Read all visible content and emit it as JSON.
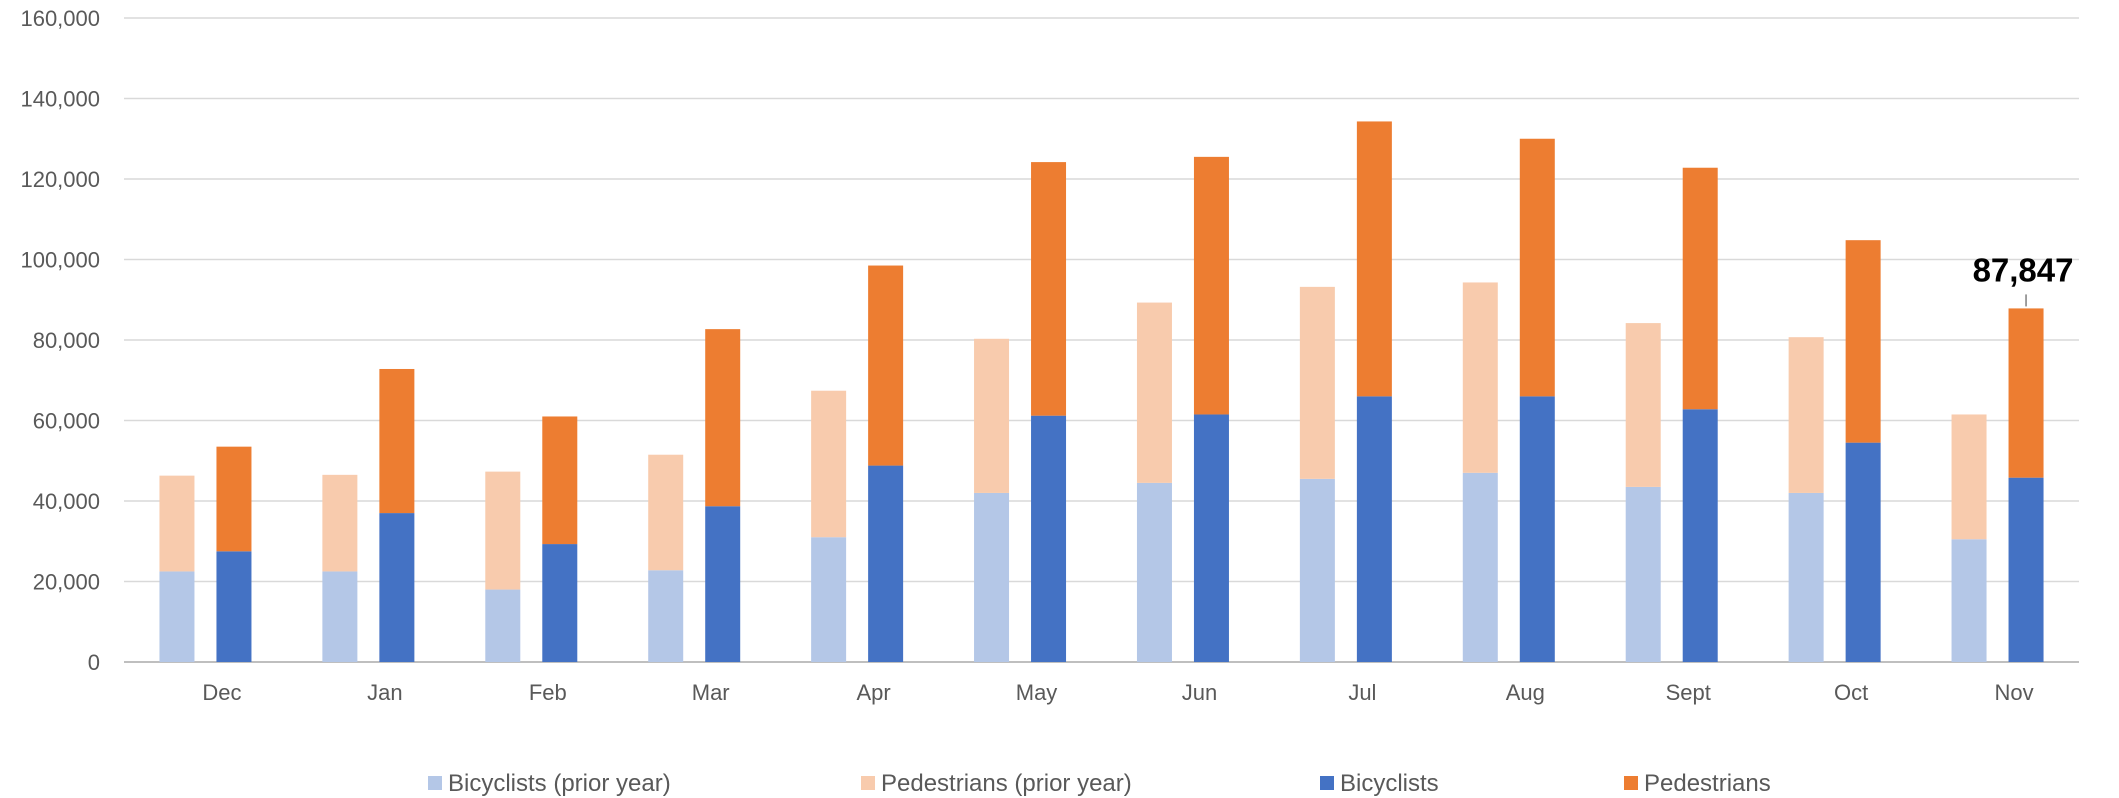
{
  "chart_data": {
    "type": "bar",
    "stacked": true,
    "grouped": true,
    "categories": [
      "Dec",
      "Jan",
      "Feb",
      "Mar",
      "Apr",
      "May",
      "Jun",
      "Jul",
      "Aug",
      "Sept",
      "Oct",
      "Nov"
    ],
    "ylim": [
      0,
      160000
    ],
    "ytick_values": [
      0,
      20000,
      40000,
      60000,
      80000,
      100000,
      120000,
      140000,
      160000
    ],
    "ytick_labels": [
      "0",
      "20,000",
      "40,000",
      "60,000",
      "80,000",
      "100,000",
      "120,000",
      "140,000",
      "160,000"
    ],
    "grid": true,
    "legend_position": "bottom",
    "groups": [
      {
        "stack": "prior",
        "series": [
          {
            "name": "Bicyclists (prior year)",
            "color": "#b4c7e7",
            "values": [
              22500,
              22500,
              18000,
              22800,
              31000,
              42000,
              44500,
              45500,
              47000,
              43500,
              42000,
              30500
            ]
          },
          {
            "name": "Pedestrians (prior year)",
            "color": "#f8cbad",
            "values": [
              23800,
              24000,
              29300,
              28700,
              36400,
              38300,
              44800,
              47700,
              47300,
              40700,
              38700,
              31000
            ]
          }
        ]
      },
      {
        "stack": "current",
        "series": [
          {
            "name": "Bicyclists",
            "color": "#4472c4",
            "values": [
              27500,
              37000,
              29300,
              38700,
              48800,
              61200,
              61500,
              66000,
              66000,
              62800,
              54500,
              45800
            ]
          },
          {
            "name": "Pedestrians",
            "color": "#ed7d31",
            "values": [
              26000,
              35800,
              31700,
              44000,
              49700,
              63000,
              64000,
              68300,
              64000,
              60000,
              50300,
              42047
            ]
          }
        ]
      }
    ],
    "annotation": {
      "category": "Nov",
      "stack": "current",
      "value": 87847,
      "text": "87,847"
    }
  },
  "colors": {
    "grid": "#d9d9d9",
    "axis": "#bfbfbf",
    "text": "#595959"
  }
}
